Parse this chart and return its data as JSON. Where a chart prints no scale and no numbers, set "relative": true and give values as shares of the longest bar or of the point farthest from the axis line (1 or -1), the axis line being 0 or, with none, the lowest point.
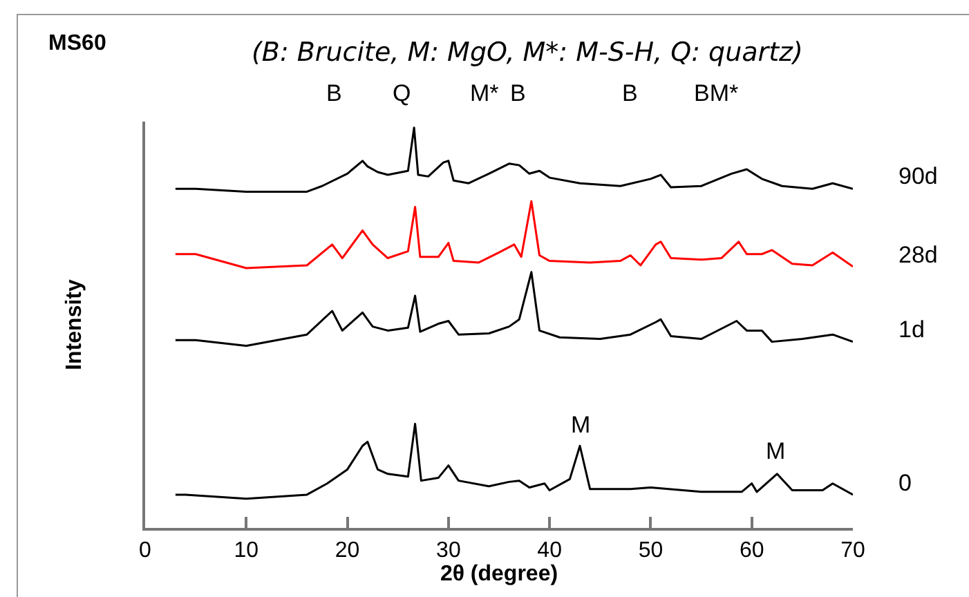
{
  "chart_data": {
    "type": "line",
    "title": "MS60",
    "subtitle": "(B: Brucite, M: MgO, M*: M-S-H, Q: quartz)",
    "xlabel": "2θ (degree)",
    "ylabel": "Intensity",
    "relative": true,
    "xlim": [
      0,
      70
    ],
    "xticks": [
      0,
      10,
      20,
      30,
      40,
      50,
      60,
      70
    ],
    "grid": false,
    "legend": false,
    "marker": "none",
    "line_style": "solid",
    "series": [
      {
        "name": "90d",
        "color": "#000000",
        "x": [
          3,
          5,
          10,
          16,
          17.5,
          20,
          21.5,
          22,
          23,
          24,
          26,
          26.6,
          27,
          28,
          29.5,
          30,
          30.5,
          32,
          34,
          36,
          37,
          38,
          39,
          40,
          43,
          47,
          50,
          51,
          52,
          55,
          58,
          59.5,
          61,
          63,
          66,
          68,
          70
        ],
        "values": [
          0.847,
          0.847,
          0.84,
          0.84,
          0.854,
          0.885,
          0.917,
          0.903,
          0.889,
          0.882,
          0.892,
          1,
          0.882,
          0.878,
          0.913,
          0.917,
          0.868,
          0.861,
          0.885,
          0.91,
          0.906,
          0.885,
          0.892,
          0.875,
          0.861,
          0.854,
          0.872,
          0.882,
          0.851,
          0.854,
          0.885,
          0.896,
          0.872,
          0.854,
          0.847,
          0.861,
          0.847
        ]
      },
      {
        "name": "28d",
        "color": "#ff0000",
        "x": [
          3,
          5,
          10,
          16,
          18.5,
          19.5,
          21.5,
          22.5,
          24,
          26,
          26.7,
          27.2,
          29,
          30,
          30.5,
          33,
          35,
          36.5,
          37.2,
          38.2,
          39,
          40,
          44,
          47,
          48,
          49,
          50.5,
          51,
          52,
          55,
          57,
          58.7,
          59.5,
          61,
          62,
          64,
          66,
          68,
          70
        ],
        "values": [
          0.684,
          0.684,
          0.649,
          0.656,
          0.708,
          0.674,
          0.743,
          0.708,
          0.674,
          0.691,
          0.802,
          0.677,
          0.677,
          0.712,
          0.667,
          0.663,
          0.688,
          0.708,
          0.677,
          0.816,
          0.681,
          0.667,
          0.663,
          0.667,
          0.681,
          0.656,
          0.708,
          0.715,
          0.674,
          0.67,
          0.674,
          0.715,
          0.684,
          0.684,
          0.694,
          0.66,
          0.656,
          0.688,
          0.653
        ]
      },
      {
        "name": "1d",
        "color": "#000000",
        "x": [
          3,
          5,
          10,
          16,
          18.5,
          19.5,
          21.5,
          22.5,
          24,
          26,
          26.7,
          27.2,
          29,
          30,
          31,
          34,
          36,
          37,
          38.2,
          39,
          41,
          45,
          48,
          50.5,
          51,
          52,
          55,
          58.5,
          59.5,
          61,
          62,
          65,
          68,
          70
        ],
        "values": [
          0.469,
          0.469,
          0.455,
          0.483,
          0.542,
          0.493,
          0.538,
          0.503,
          0.493,
          0.5,
          0.58,
          0.49,
          0.51,
          0.517,
          0.483,
          0.486,
          0.503,
          0.521,
          0.639,
          0.493,
          0.476,
          0.472,
          0.483,
          0.514,
          0.521,
          0.479,
          0.472,
          0.517,
          0.493,
          0.493,
          0.465,
          0.472,
          0.483,
          0.465
        ]
      },
      {
        "name": "0",
        "color": "#000000",
        "x": [
          3,
          4,
          10,
          16,
          18,
          20,
          21.5,
          22,
          23,
          24,
          26,
          26.7,
          27.3,
          29,
          30,
          31,
          34,
          36,
          37,
          38,
          39.5,
          40,
          42,
          43,
          44,
          48,
          50,
          55,
          59,
          60,
          60.5,
          62.5,
          64,
          67,
          68,
          70
        ],
        "values": [
          0.083,
          0.083,
          0.073,
          0.083,
          0.111,
          0.146,
          0.205,
          0.215,
          0.146,
          0.135,
          0.128,
          0.26,
          0.118,
          0.125,
          0.156,
          0.118,
          0.104,
          0.115,
          0.118,
          0.101,
          0.111,
          0.094,
          0.122,
          0.205,
          0.097,
          0.097,
          0.101,
          0.09,
          0.09,
          0.111,
          0.09,
          0.135,
          0.094,
          0.094,
          0.111,
          0.083
        ]
      }
    ],
    "annotations": [
      "B",
      "Q",
      "M*",
      "B",
      "B",
      "BM*",
      "M",
      "M"
    ]
  }
}
